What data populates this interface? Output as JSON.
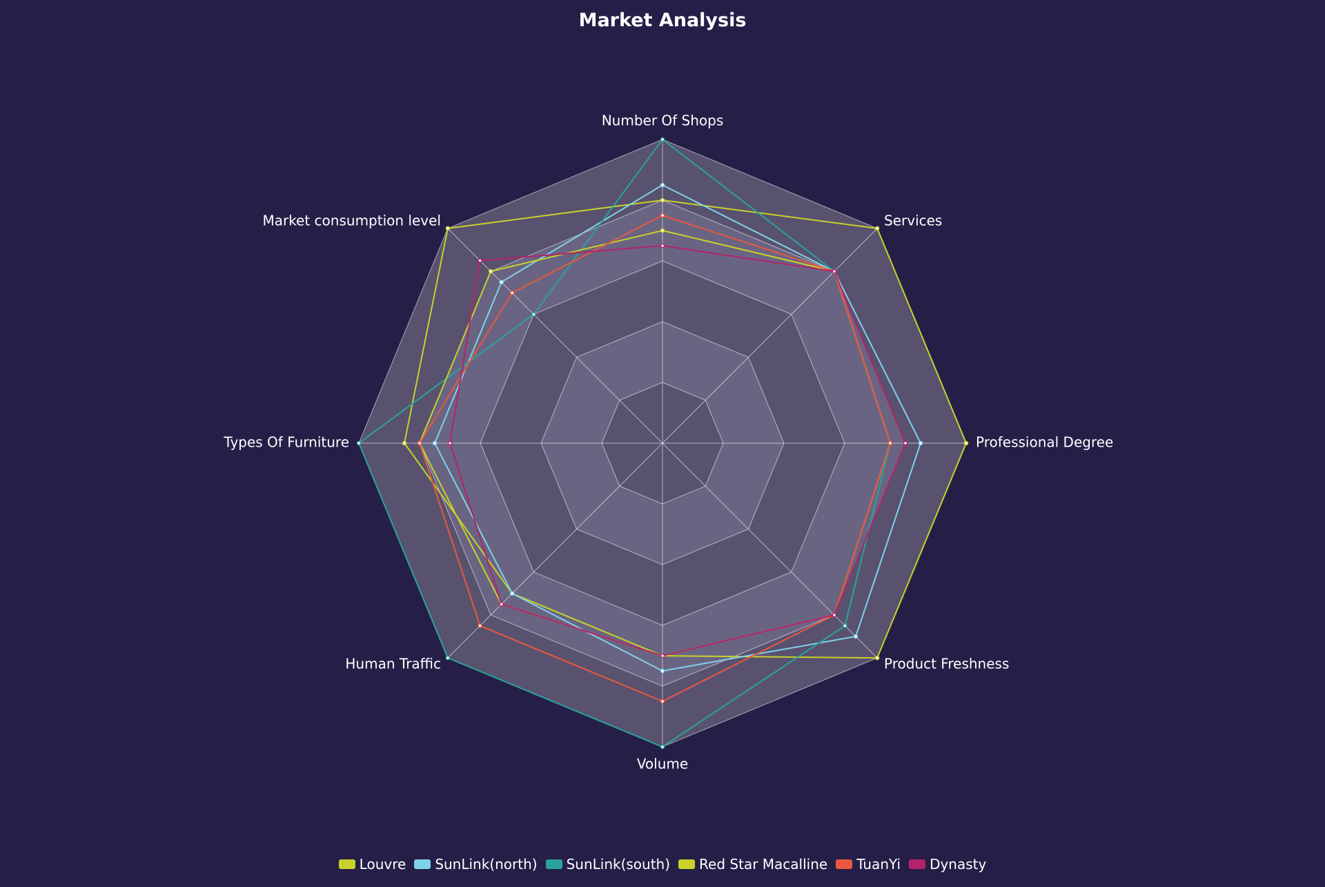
{
  "chart_data": {
    "type": "radar",
    "title": "Market Analysis",
    "indicators": [
      "Number Of Shops",
      "Services",
      "Professional Degree",
      "Product Freshness",
      "Volume",
      "Human Traffic",
      "Types Of Furniture",
      "Market consumption level"
    ],
    "max": 100,
    "split_number": 5,
    "series": [
      {
        "name": "Louvre",
        "color": "#c8d22a",
        "values": [
          80,
          100,
          100,
          100,
          70,
          70,
          85,
          100
        ]
      },
      {
        "name": "SunLink(north)",
        "color": "#7fd1eb",
        "values": [
          85,
          80,
          85,
          90,
          75,
          70,
          75,
          75
        ]
      },
      {
        "name": "SunLink(south)",
        "color": "#2aa39a",
        "values": [
          100,
          80,
          75,
          85,
          100,
          100,
          100,
          60
        ]
      },
      {
        "name": "Red Star Macalline",
        "color": "#c8d22a",
        "values": [
          70,
          80,
          75,
          80,
          70,
          75,
          80,
          80
        ]
      },
      {
        "name": "TuanYi",
        "color": "#e8583f",
        "values": [
          75,
          80,
          75,
          80,
          85,
          85,
          80,
          70
        ]
      },
      {
        "name": "Dynasty",
        "color": "#b3226c",
        "values": [
          65,
          80,
          80,
          80,
          70,
          75,
          70,
          85
        ]
      }
    ]
  }
}
